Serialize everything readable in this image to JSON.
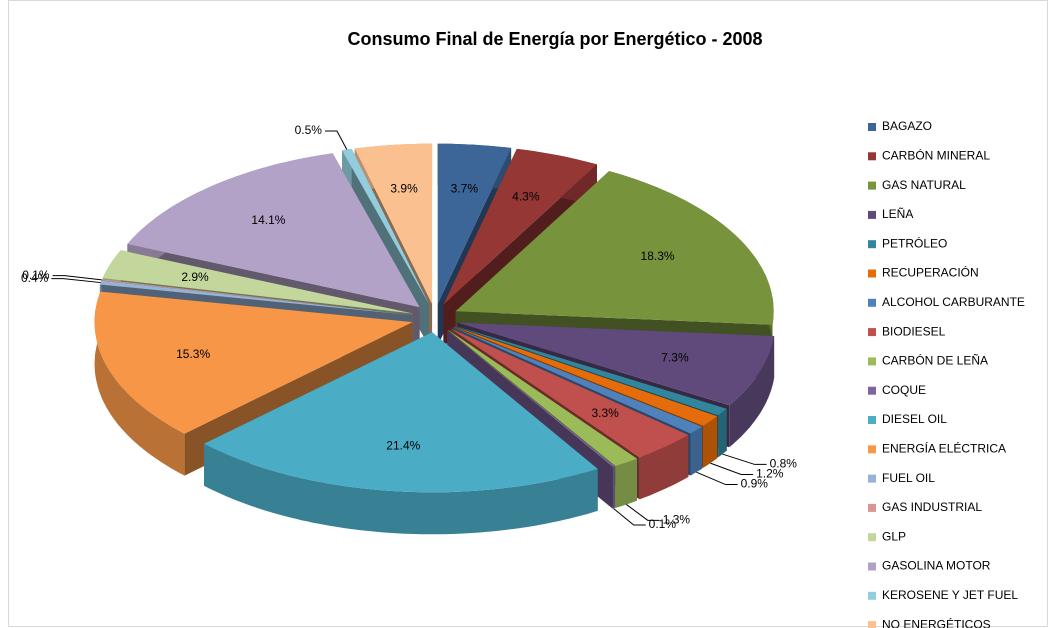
{
  "chart_data": {
    "type": "pie3d",
    "title": "Consumo Final de Energía por Energético - 2008",
    "categories": [
      "BAGAZO",
      "CARBÓN MINERAL",
      "GAS NATURAL",
      "LEÑA",
      "PETRÓLEO",
      "RECUPERACIÓN",
      "ALCOHOL CARBURANTE",
      "BIODIESEL",
      "CARBÓN DE LEÑA",
      "COQUE",
      "DIESEL OIL",
      "ENERGÍA ELÉCTRICA",
      "FUEL OIL",
      "GAS INDUSTRIAL",
      "GLP",
      "GASOLINA MOTOR",
      "KEROSENE  Y JET FUEL",
      "NO ENERGÉTICOS"
    ],
    "values": [
      3.7,
      4.3,
      18.3,
      7.3,
      0.8,
      1.2,
      0.9,
      3.3,
      1.3,
      0.1,
      21.4,
      15.3,
      0.4,
      0.1,
      2.9,
      14.1,
      0.5,
      3.9
    ],
    "value_labels": [
      "3.7%",
      "4.3%",
      "18.3%",
      "7.3%",
      "0.8%",
      "1.2%",
      "0.9%",
      "3.3%",
      "1.3%",
      "0.1%",
      "21.4%",
      "15.3%",
      "0.4%",
      "0.1%",
      "2.9%",
      "14.1%",
      "0.5%",
      "3.9%"
    ],
    "colors": [
      "#3C6598",
      "#953735",
      "#77933C",
      "#604A7B",
      "#31859C",
      "#E46C0A",
      "#4F81BD",
      "#C0504D",
      "#9BBB59",
      "#8064A2",
      "#4BACC6",
      "#F79646",
      "#95B3D7",
      "#D99694",
      "#C3D69B",
      "#B3A2C7",
      "#93CDDD",
      "#FAC090"
    ],
    "legend": "right"
  }
}
